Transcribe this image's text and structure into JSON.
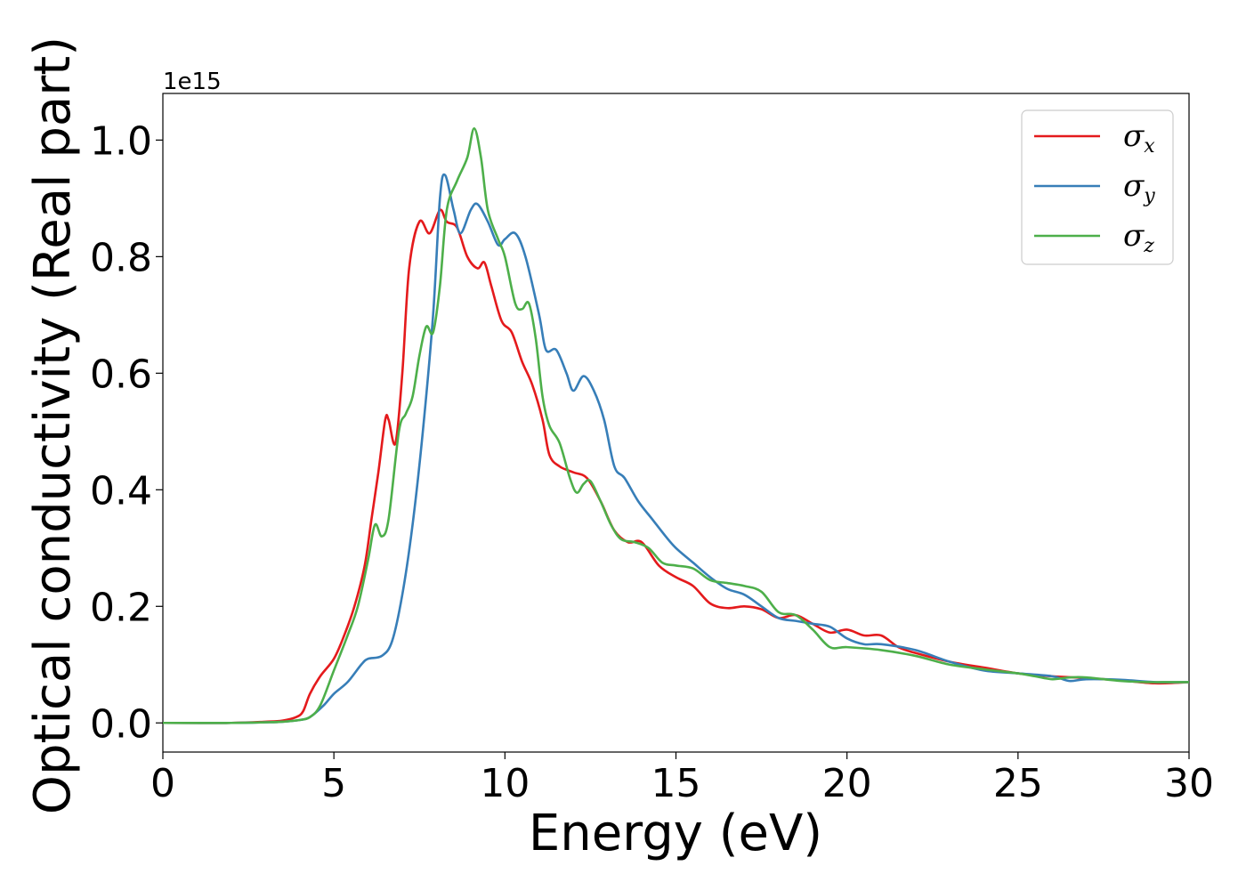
{
  "chart_data": {
    "type": "line",
    "xlabel": "Energy (eV)",
    "ylabel": "Optical conductivity (Real part)",
    "y_offset_label": "1e15",
    "xlim": [
      0,
      30
    ],
    "ylim": [
      -0.05,
      1.08
    ],
    "xticks": [
      0,
      5,
      10,
      15,
      20,
      25,
      30
    ],
    "xtick_labels": [
      "0",
      "5",
      "10",
      "15",
      "20",
      "25",
      "30"
    ],
    "yticks": [
      0.0,
      0.2,
      0.4,
      0.6,
      0.8,
      1.0
    ],
    "ytick_labels": [
      "0.0",
      "0.2",
      "0.4",
      "0.6",
      "0.8",
      "1.0"
    ],
    "grid": false,
    "legend_position": "top-right",
    "series": [
      {
        "name": "σ",
        "subscript": "x",
        "color": "#e41a1c",
        "points": [
          [
            0,
            0.0
          ],
          [
            2,
            0.0
          ],
          [
            3,
            0.002
          ],
          [
            3.5,
            0.004
          ],
          [
            3.9,
            0.01
          ],
          [
            4.1,
            0.02
          ],
          [
            4.3,
            0.05
          ],
          [
            4.6,
            0.08
          ],
          [
            5.0,
            0.11
          ],
          [
            5.3,
            0.15
          ],
          [
            5.6,
            0.2
          ],
          [
            5.9,
            0.27
          ],
          [
            6.1,
            0.35
          ],
          [
            6.3,
            0.43
          ],
          [
            6.5,
            0.52
          ],
          [
            6.6,
            0.52
          ],
          [
            6.8,
            0.48
          ],
          [
            7.0,
            0.6
          ],
          [
            7.2,
            0.78
          ],
          [
            7.5,
            0.86
          ],
          [
            7.8,
            0.84
          ],
          [
            8.1,
            0.88
          ],
          [
            8.3,
            0.86
          ],
          [
            8.6,
            0.85
          ],
          [
            8.9,
            0.8
          ],
          [
            9.2,
            0.78
          ],
          [
            9.4,
            0.79
          ],
          [
            9.6,
            0.75
          ],
          [
            9.9,
            0.69
          ],
          [
            10.2,
            0.67
          ],
          [
            10.5,
            0.62
          ],
          [
            10.8,
            0.58
          ],
          [
            11.1,
            0.52
          ],
          [
            11.3,
            0.46
          ],
          [
            11.6,
            0.44
          ],
          [
            12.0,
            0.43
          ],
          [
            12.4,
            0.42
          ],
          [
            12.8,
            0.38
          ],
          [
            13.2,
            0.33
          ],
          [
            13.6,
            0.31
          ],
          [
            14.0,
            0.31
          ],
          [
            14.5,
            0.27
          ],
          [
            15.0,
            0.25
          ],
          [
            15.5,
            0.235
          ],
          [
            16.0,
            0.205
          ],
          [
            16.5,
            0.197
          ],
          [
            17.0,
            0.2
          ],
          [
            17.5,
            0.195
          ],
          [
            18.0,
            0.18
          ],
          [
            18.5,
            0.185
          ],
          [
            19.0,
            0.17
          ],
          [
            19.5,
            0.155
          ],
          [
            20.0,
            0.16
          ],
          [
            20.5,
            0.15
          ],
          [
            21.0,
            0.15
          ],
          [
            21.5,
            0.13
          ],
          [
            22.0,
            0.12
          ],
          [
            23.0,
            0.105
          ],
          [
            24.0,
            0.095
          ],
          [
            25.0,
            0.085
          ],
          [
            26.0,
            0.08
          ],
          [
            27.0,
            0.077
          ],
          [
            28.0,
            0.073
          ],
          [
            29.0,
            0.068
          ],
          [
            30.0,
            0.07
          ]
        ]
      },
      {
        "name": "σ",
        "subscript": "y",
        "color": "#377eb8",
        "points": [
          [
            0,
            0.0
          ],
          [
            2,
            0.0
          ],
          [
            3,
            0.001
          ],
          [
            3.5,
            0.002
          ],
          [
            4.0,
            0.005
          ],
          [
            4.3,
            0.01
          ],
          [
            4.7,
            0.03
          ],
          [
            5.0,
            0.05
          ],
          [
            5.4,
            0.07
          ],
          [
            5.8,
            0.1
          ],
          [
            6.0,
            0.11
          ],
          [
            6.4,
            0.115
          ],
          [
            6.7,
            0.14
          ],
          [
            7.0,
            0.22
          ],
          [
            7.3,
            0.34
          ],
          [
            7.6,
            0.5
          ],
          [
            7.9,
            0.7
          ],
          [
            8.1,
            0.9
          ],
          [
            8.25,
            0.94
          ],
          [
            8.5,
            0.88
          ],
          [
            8.7,
            0.84
          ],
          [
            9.0,
            0.88
          ],
          [
            9.2,
            0.89
          ],
          [
            9.5,
            0.86
          ],
          [
            9.8,
            0.82
          ],
          [
            10.0,
            0.83
          ],
          [
            10.3,
            0.84
          ],
          [
            10.6,
            0.8
          ],
          [
            11.0,
            0.7
          ],
          [
            11.2,
            0.64
          ],
          [
            11.5,
            0.64
          ],
          [
            11.8,
            0.6
          ],
          [
            12.0,
            0.57
          ],
          [
            12.3,
            0.595
          ],
          [
            12.6,
            0.57
          ],
          [
            12.9,
            0.52
          ],
          [
            13.2,
            0.44
          ],
          [
            13.5,
            0.42
          ],
          [
            13.9,
            0.38
          ],
          [
            14.3,
            0.35
          ],
          [
            14.7,
            0.32
          ],
          [
            15.0,
            0.3
          ],
          [
            15.5,
            0.275
          ],
          [
            16.0,
            0.25
          ],
          [
            16.5,
            0.23
          ],
          [
            17.0,
            0.22
          ],
          [
            17.5,
            0.2
          ],
          [
            18.0,
            0.18
          ],
          [
            18.5,
            0.175
          ],
          [
            19.0,
            0.17
          ],
          [
            19.5,
            0.165
          ],
          [
            20.0,
            0.145
          ],
          [
            20.5,
            0.135
          ],
          [
            21.0,
            0.135
          ],
          [
            22.0,
            0.125
          ],
          [
            23.0,
            0.105
          ],
          [
            24.0,
            0.09
          ],
          [
            25.0,
            0.085
          ],
          [
            26.0,
            0.08
          ],
          [
            26.5,
            0.072
          ],
          [
            27.0,
            0.075
          ],
          [
            28.0,
            0.074
          ],
          [
            29.0,
            0.07
          ],
          [
            30.0,
            0.07
          ]
        ]
      },
      {
        "name": "σ",
        "subscript": "z",
        "color": "#4daf4a",
        "points": [
          [
            0,
            0.0
          ],
          [
            2,
            0.0
          ],
          [
            3,
            0.001
          ],
          [
            3.5,
            0.002
          ],
          [
            4.0,
            0.005
          ],
          [
            4.3,
            0.01
          ],
          [
            4.6,
            0.03
          ],
          [
            5.0,
            0.09
          ],
          [
            5.4,
            0.15
          ],
          [
            5.7,
            0.2
          ],
          [
            6.0,
            0.28
          ],
          [
            6.2,
            0.34
          ],
          [
            6.4,
            0.32
          ],
          [
            6.6,
            0.35
          ],
          [
            6.9,
            0.5
          ],
          [
            7.1,
            0.53
          ],
          [
            7.3,
            0.56
          ],
          [
            7.5,
            0.63
          ],
          [
            7.7,
            0.68
          ],
          [
            7.9,
            0.67
          ],
          [
            8.1,
            0.75
          ],
          [
            8.3,
            0.88
          ],
          [
            8.6,
            0.93
          ],
          [
            8.9,
            0.97
          ],
          [
            9.1,
            1.02
          ],
          [
            9.3,
            0.97
          ],
          [
            9.5,
            0.88
          ],
          [
            9.8,
            0.83
          ],
          [
            10.0,
            0.8
          ],
          [
            10.3,
            0.72
          ],
          [
            10.5,
            0.71
          ],
          [
            10.7,
            0.72
          ],
          [
            10.9,
            0.66
          ],
          [
            11.1,
            0.56
          ],
          [
            11.3,
            0.51
          ],
          [
            11.6,
            0.48
          ],
          [
            11.9,
            0.42
          ],
          [
            12.1,
            0.395
          ],
          [
            12.3,
            0.41
          ],
          [
            12.5,
            0.415
          ],
          [
            12.8,
            0.38
          ],
          [
            13.1,
            0.34
          ],
          [
            13.4,
            0.315
          ],
          [
            13.8,
            0.31
          ],
          [
            14.2,
            0.3
          ],
          [
            14.6,
            0.275
          ],
          [
            15.0,
            0.27
          ],
          [
            15.5,
            0.265
          ],
          [
            16.0,
            0.245
          ],
          [
            16.5,
            0.24
          ],
          [
            17.0,
            0.235
          ],
          [
            17.5,
            0.225
          ],
          [
            18.0,
            0.19
          ],
          [
            18.5,
            0.185
          ],
          [
            19.0,
            0.16
          ],
          [
            19.5,
            0.13
          ],
          [
            20.0,
            0.13
          ],
          [
            21.0,
            0.125
          ],
          [
            22.0,
            0.115
          ],
          [
            23.0,
            0.1
          ],
          [
            24.0,
            0.092
          ],
          [
            25.0,
            0.085
          ],
          [
            25.5,
            0.08
          ],
          [
            26.0,
            0.075
          ],
          [
            26.5,
            0.078
          ],
          [
            27.0,
            0.078
          ],
          [
            28.0,
            0.072
          ],
          [
            28.8,
            0.07
          ],
          [
            29.4,
            0.07
          ],
          [
            30.0,
            0.07
          ]
        ]
      }
    ]
  }
}
